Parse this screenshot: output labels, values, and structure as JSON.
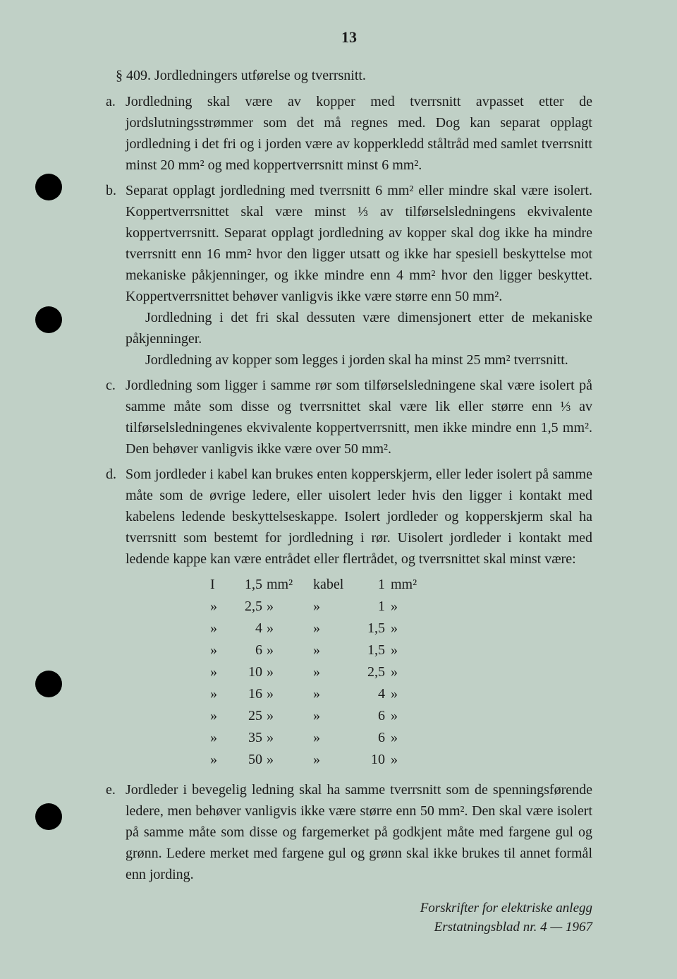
{
  "page_number": "13",
  "section_heading": "§ 409. Jordledningers utførelse og tverrsnitt.",
  "items": [
    {
      "letter": "a.",
      "paragraphs": [
        "Jordledning skal være av kopper med tverrsnitt avpasset etter de jordslutningsstrømmer som det må regnes med. Dog kan separat opplagt jordledning i det fri og i jorden være av kopperkledd ståltråd med samlet tverrsnitt minst 20 mm² og med koppertverrsnitt minst 6 mm²."
      ]
    },
    {
      "letter": "b.",
      "paragraphs": [
        "Separat opplagt jordledning med tverrsnitt 6 mm² eller mindre skal være isolert. Koppertverrsnittet skal være minst ⅓ av tilførselsledningens ekvivalente koppertverrsnitt. Separat opplagt jordledning av kopper skal dog ikke ha mindre tverrsnitt enn 16 mm² hvor den ligger utsatt og ikke har spesiell beskyttelse mot mekaniske påkjenninger, og ikke mindre enn 4 mm² hvor den ligger beskyttet. Koppertverrsnittet behøver vanligvis ikke være større enn 50 mm².",
        "Jordledning i det fri skal dessuten være dimensjonert etter de mekaniske påkjenninger.",
        "Jordledning av kopper som legges i jorden skal ha minst 25 mm² tverrsnitt."
      ]
    },
    {
      "letter": "c.",
      "paragraphs": [
        "Jordledning som ligger i samme rør som tilførselsledningene skal være isolert på samme måte som disse og tverrsnittet skal være lik eller større enn ⅓ av tilførselsledningenes ekvivalente koppertverrsnitt, men ikke mindre enn 1,5 mm². Den behøver vanligvis ikke være over 50 mm²."
      ]
    },
    {
      "letter": "d.",
      "paragraphs": [
        "Som jordleder i kabel kan brukes enten kopperskjerm, eller leder isolert på samme måte som de øvrige ledere, eller uisolert leder hvis den ligger i kontakt med kabelens ledende beskyttelseskappe. Isolert jordleder og kopperskjerm skal ha tverrsnitt som bestemt for jordledning i rør. Uisolert jordleder i kontakt med ledende kappe kan være entrådet eller flertrådet, og tverrsnittet skal minst være:"
      ]
    },
    {
      "letter": "e.",
      "paragraphs": [
        "Jordleder i bevegelig ledning skal ha samme tverrsnitt som de spenningsførende ledere, men behøver vanligvis ikke være større enn 50 mm². Den skal være isolert på samme måte som disse og fargemerket på godkjent måte med fargene gul og grønn. Ledere merket med fargene gul og grønn skal ikke brukes til annet formål enn jording."
      ]
    }
  ],
  "table": {
    "rows": [
      {
        "c1": "I",
        "c2": "1,5",
        "c3": "mm²",
        "c4": "kabel",
        "c5": "1",
        "c6": "mm²"
      },
      {
        "c1": "»",
        "c2": "2,5",
        "c3": "»",
        "c4": "»",
        "c5": "1",
        "c6": "»"
      },
      {
        "c1": "»",
        "c2": "4",
        "c3": "»",
        "c4": "»",
        "c5": "1,5",
        "c6": "»"
      },
      {
        "c1": "»",
        "c2": "6",
        "c3": "»",
        "c4": "»",
        "c5": "1,5",
        "c6": "»"
      },
      {
        "c1": "»",
        "c2": "10",
        "c3": "»",
        "c4": "»",
        "c5": "2,5",
        "c6": "»"
      },
      {
        "c1": "»",
        "c2": "16",
        "c3": "»",
        "c4": "»",
        "c5": "4",
        "c6": "»"
      },
      {
        "c1": "»",
        "c2": "25",
        "c3": "»",
        "c4": "»",
        "c5": "6",
        "c6": "»"
      },
      {
        "c1": "»",
        "c2": "35",
        "c3": "»",
        "c4": "»",
        "c5": "6",
        "c6": "»"
      },
      {
        "c1": "»",
        "c2": "50",
        "c3": "»",
        "c4": "»",
        "c5": "10",
        "c6": "»"
      }
    ]
  },
  "footer_line1": "Forskrifter for elektriske anlegg",
  "footer_line2": "Erstatningsblad nr. 4 — 1967",
  "colors": {
    "background": "#c0d0c6",
    "text": "#1a1a1a"
  }
}
